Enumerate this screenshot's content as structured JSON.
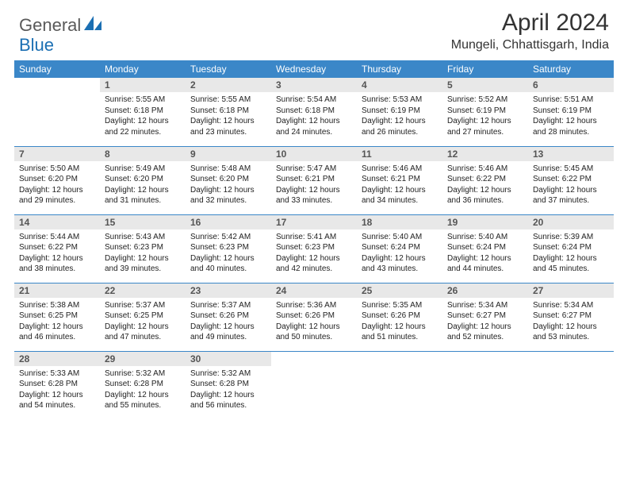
{
  "logo": {
    "part1": "General",
    "part2": "Blue"
  },
  "title": "April 2024",
  "location": "Mungeli, Chhattisgarh, India",
  "colors": {
    "header_bg": "#3b87c8",
    "daynum_bg": "#e8e8e8",
    "accent": "#1b6fb3"
  },
  "dayNames": [
    "Sunday",
    "Monday",
    "Tuesday",
    "Wednesday",
    "Thursday",
    "Friday",
    "Saturday"
  ],
  "weeks": [
    [
      null,
      {
        "n": 1,
        "sr": "5:55 AM",
        "ss": "6:18 PM",
        "dl": "12 hours and 22 minutes."
      },
      {
        "n": 2,
        "sr": "5:55 AM",
        "ss": "6:18 PM",
        "dl": "12 hours and 23 minutes."
      },
      {
        "n": 3,
        "sr": "5:54 AM",
        "ss": "6:18 PM",
        "dl": "12 hours and 24 minutes."
      },
      {
        "n": 4,
        "sr": "5:53 AM",
        "ss": "6:19 PM",
        "dl": "12 hours and 26 minutes."
      },
      {
        "n": 5,
        "sr": "5:52 AM",
        "ss": "6:19 PM",
        "dl": "12 hours and 27 minutes."
      },
      {
        "n": 6,
        "sr": "5:51 AM",
        "ss": "6:19 PM",
        "dl": "12 hours and 28 minutes."
      }
    ],
    [
      {
        "n": 7,
        "sr": "5:50 AM",
        "ss": "6:20 PM",
        "dl": "12 hours and 29 minutes."
      },
      {
        "n": 8,
        "sr": "5:49 AM",
        "ss": "6:20 PM",
        "dl": "12 hours and 31 minutes."
      },
      {
        "n": 9,
        "sr": "5:48 AM",
        "ss": "6:20 PM",
        "dl": "12 hours and 32 minutes."
      },
      {
        "n": 10,
        "sr": "5:47 AM",
        "ss": "6:21 PM",
        "dl": "12 hours and 33 minutes."
      },
      {
        "n": 11,
        "sr": "5:46 AM",
        "ss": "6:21 PM",
        "dl": "12 hours and 34 minutes."
      },
      {
        "n": 12,
        "sr": "5:46 AM",
        "ss": "6:22 PM",
        "dl": "12 hours and 36 minutes."
      },
      {
        "n": 13,
        "sr": "5:45 AM",
        "ss": "6:22 PM",
        "dl": "12 hours and 37 minutes."
      }
    ],
    [
      {
        "n": 14,
        "sr": "5:44 AM",
        "ss": "6:22 PM",
        "dl": "12 hours and 38 minutes."
      },
      {
        "n": 15,
        "sr": "5:43 AM",
        "ss": "6:23 PM",
        "dl": "12 hours and 39 minutes."
      },
      {
        "n": 16,
        "sr": "5:42 AM",
        "ss": "6:23 PM",
        "dl": "12 hours and 40 minutes."
      },
      {
        "n": 17,
        "sr": "5:41 AM",
        "ss": "6:23 PM",
        "dl": "12 hours and 42 minutes."
      },
      {
        "n": 18,
        "sr": "5:40 AM",
        "ss": "6:24 PM",
        "dl": "12 hours and 43 minutes."
      },
      {
        "n": 19,
        "sr": "5:40 AM",
        "ss": "6:24 PM",
        "dl": "12 hours and 44 minutes."
      },
      {
        "n": 20,
        "sr": "5:39 AM",
        "ss": "6:24 PM",
        "dl": "12 hours and 45 minutes."
      }
    ],
    [
      {
        "n": 21,
        "sr": "5:38 AM",
        "ss": "6:25 PM",
        "dl": "12 hours and 46 minutes."
      },
      {
        "n": 22,
        "sr": "5:37 AM",
        "ss": "6:25 PM",
        "dl": "12 hours and 47 minutes."
      },
      {
        "n": 23,
        "sr": "5:37 AM",
        "ss": "6:26 PM",
        "dl": "12 hours and 49 minutes."
      },
      {
        "n": 24,
        "sr": "5:36 AM",
        "ss": "6:26 PM",
        "dl": "12 hours and 50 minutes."
      },
      {
        "n": 25,
        "sr": "5:35 AM",
        "ss": "6:26 PM",
        "dl": "12 hours and 51 minutes."
      },
      {
        "n": 26,
        "sr": "5:34 AM",
        "ss": "6:27 PM",
        "dl": "12 hours and 52 minutes."
      },
      {
        "n": 27,
        "sr": "5:34 AM",
        "ss": "6:27 PM",
        "dl": "12 hours and 53 minutes."
      }
    ],
    [
      {
        "n": 28,
        "sr": "5:33 AM",
        "ss": "6:28 PM",
        "dl": "12 hours and 54 minutes."
      },
      {
        "n": 29,
        "sr": "5:32 AM",
        "ss": "6:28 PM",
        "dl": "12 hours and 55 minutes."
      },
      {
        "n": 30,
        "sr": "5:32 AM",
        "ss": "6:28 PM",
        "dl": "12 hours and 56 minutes."
      },
      null,
      null,
      null,
      null
    ]
  ],
  "labels": {
    "sunrise": "Sunrise:",
    "sunset": "Sunset:",
    "daylight": "Daylight:"
  }
}
